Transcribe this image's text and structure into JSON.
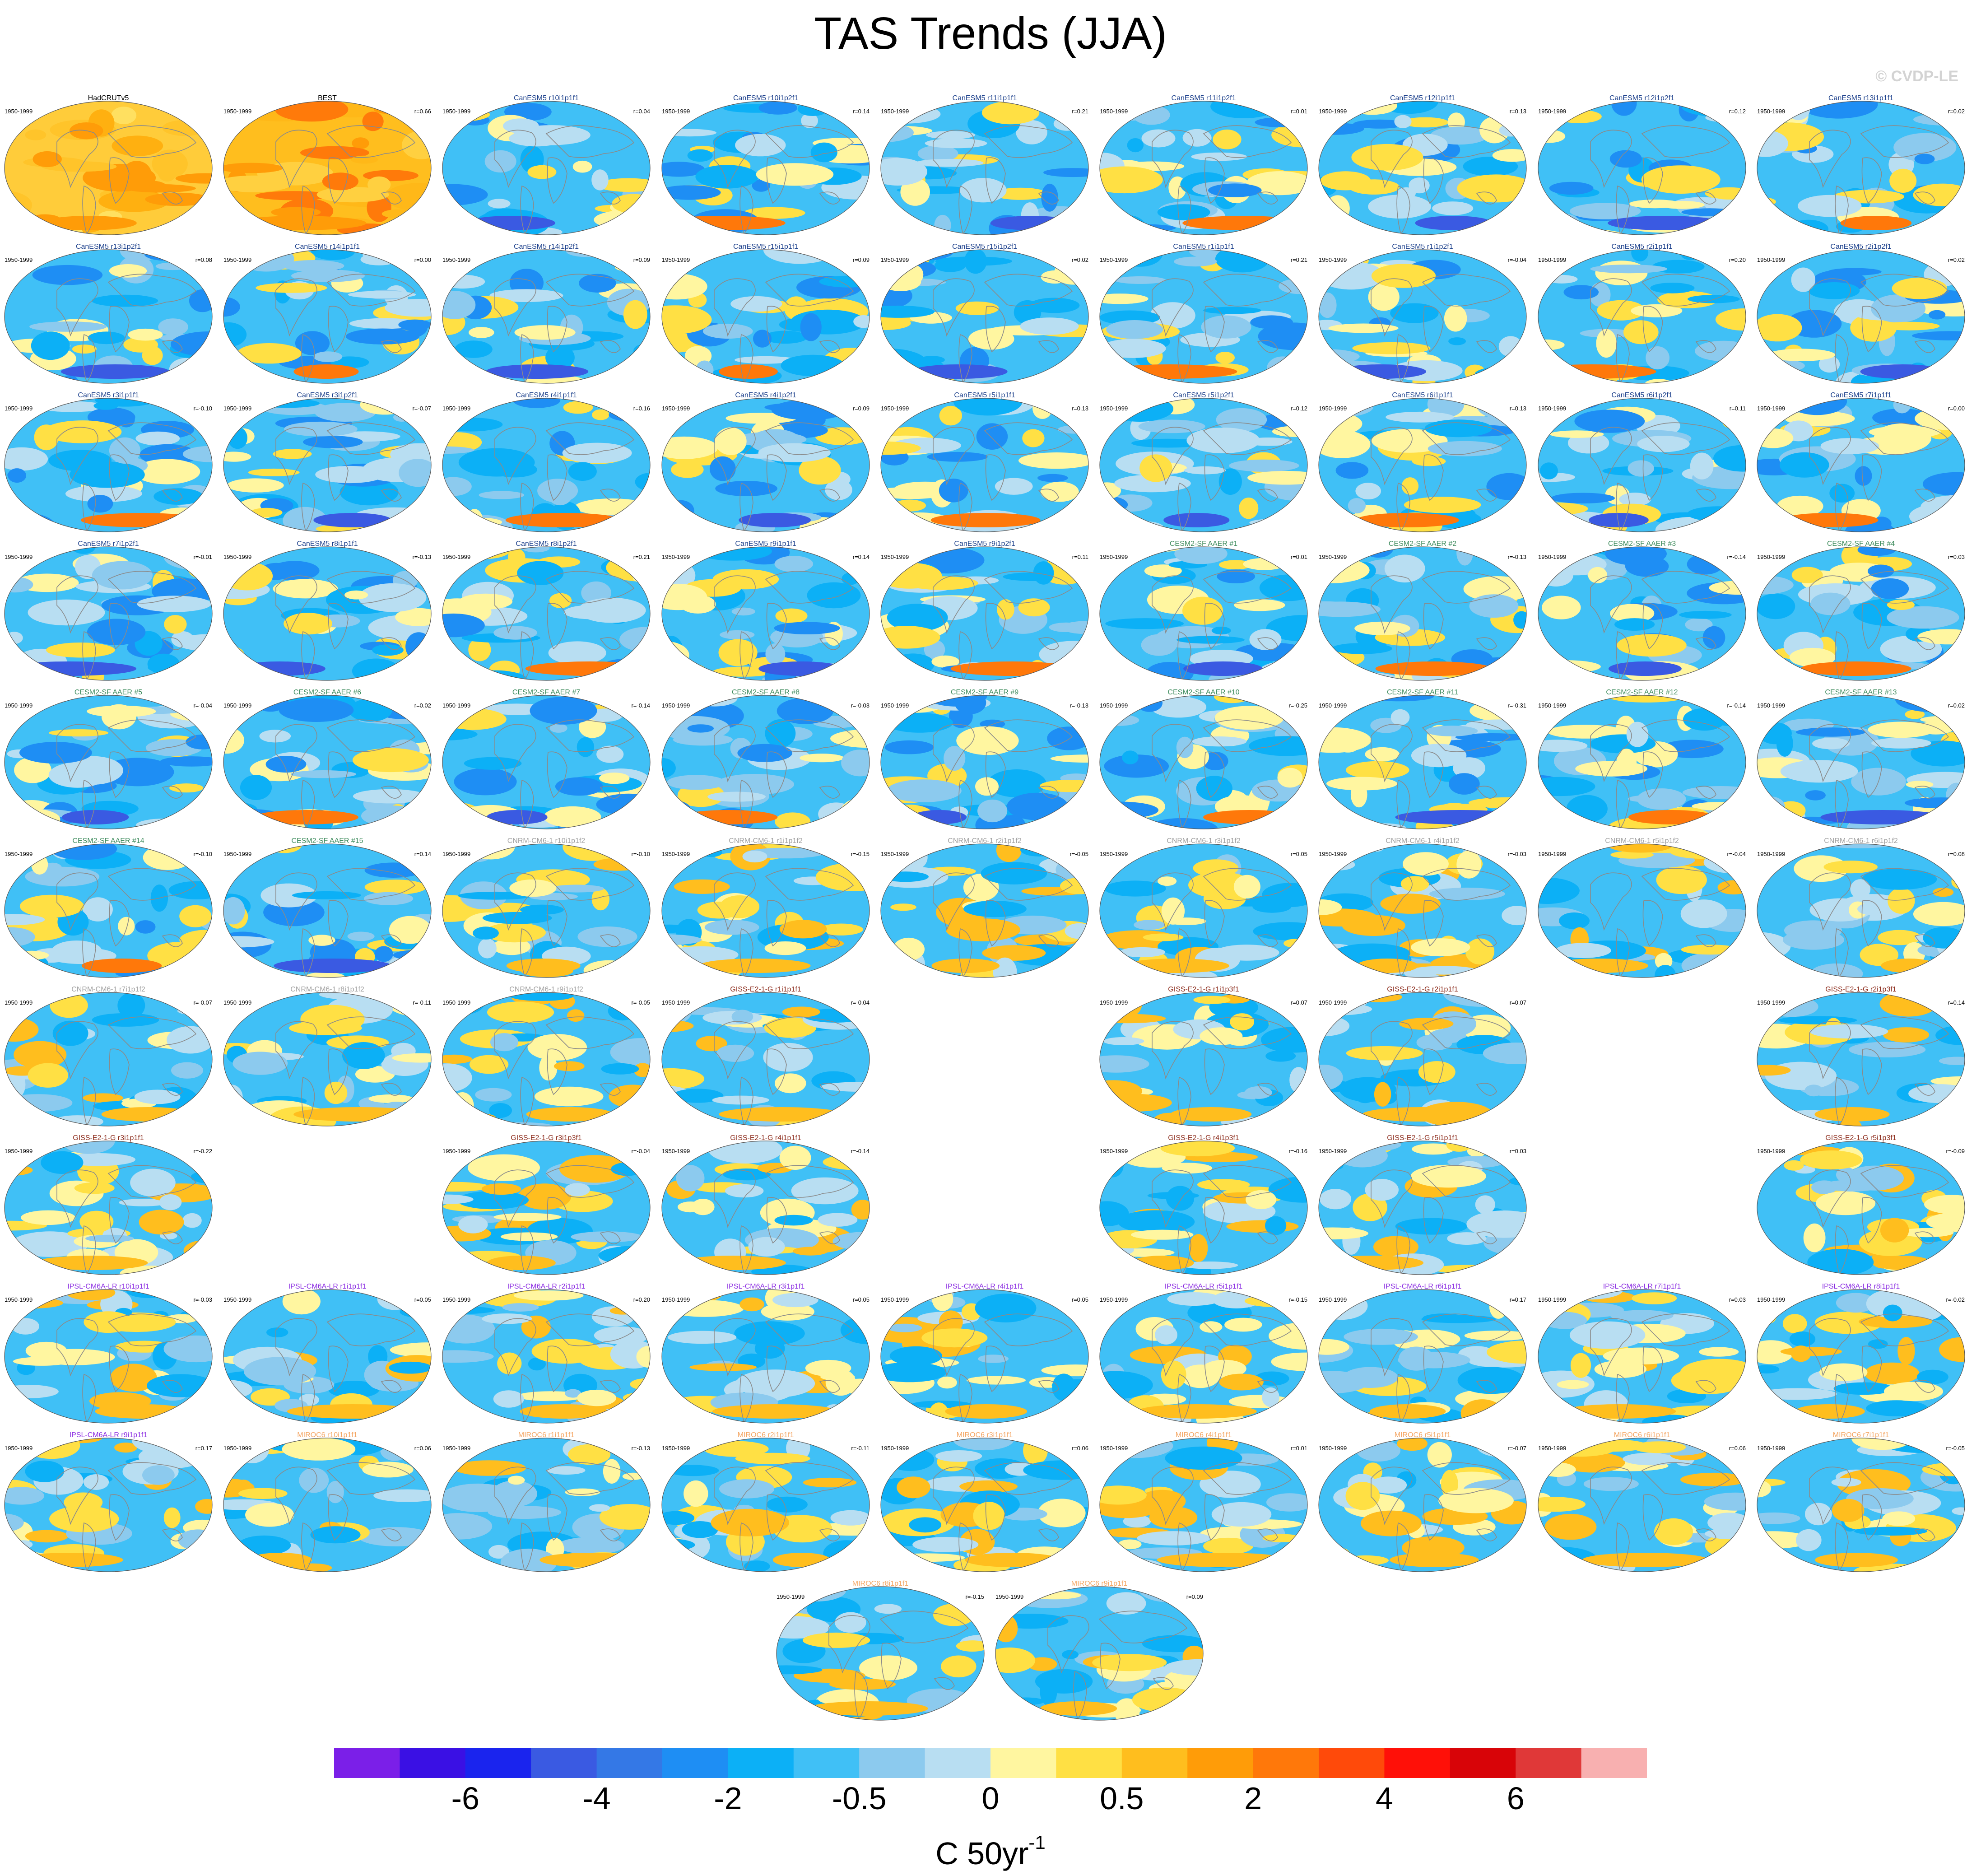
{
  "title": "TAS Trends (JJA)",
  "watermark": "© CVDP-LE",
  "period": "1950-1999",
  "units": {
    "base": "C 50yr",
    "exp": "-1"
  },
  "colorbar": {
    "colors": [
      "#7b1fe8",
      "#3a10e4",
      "#1a24ee",
      "#3a5ae2",
      "#3478e6",
      "#1e8ef4",
      "#0cb0f6",
      "#40c0f6",
      "#8ccaee",
      "#b8def2",
      "#fff6a0",
      "#ffe044",
      "#ffbe1e",
      "#ff9c08",
      "#ff780a",
      "#ff4a0a",
      "#ff1008",
      "#d80408",
      "#e03838",
      "#f8b0b0"
    ],
    "labels": [
      "-6",
      "-4",
      "-2",
      "-0.5",
      "0",
      "0.5",
      "2",
      "4",
      "6"
    ]
  },
  "panels": [
    {
      "name": "HadCRUTv5",
      "r": "",
      "color": "#000000",
      "style": "obs1"
    },
    {
      "name": "BEST",
      "r": "r=0.66",
      "color": "#000000",
      "style": "obs2"
    },
    {
      "name": "CanESM5 r10i1p1f1",
      "r": "r=0.04",
      "color": "#1b3f8b",
      "style": "cool"
    },
    {
      "name": "CanESM5 r10i1p2f1",
      "r": "r=0.14",
      "color": "#1b3f8b",
      "style": "cool"
    },
    {
      "name": "CanESM5 r11i1p1f1",
      "r": "r=0.21",
      "color": "#1b3f8b",
      "style": "cool"
    },
    {
      "name": "CanESM5 r11i1p2f1",
      "r": "r=0.01",
      "color": "#1b3f8b",
      "style": "cool"
    },
    {
      "name": "CanESM5 r12i1p1f1",
      "r": "r=0.13",
      "color": "#1b3f8b",
      "style": "cool"
    },
    {
      "name": "CanESM5 r12i1p2f1",
      "r": "r=0.12",
      "color": "#1b3f8b",
      "style": "cool"
    },
    {
      "name": "CanESM5 r13i1p1f1",
      "r": "r=0.02",
      "color": "#1b3f8b",
      "style": "cool"
    },
    {
      "name": "CanESM5 r13i1p2f1",
      "r": "r=0.08",
      "color": "#1b3f8b",
      "style": "cool"
    },
    {
      "name": "CanESM5 r14i1p1f1",
      "r": "r=0.00",
      "color": "#1b3f8b",
      "style": "cool"
    },
    {
      "name": "CanESM5 r14i1p2f1",
      "r": "r=0.09",
      "color": "#1b3f8b",
      "style": "cool"
    },
    {
      "name": "CanESM5 r15i1p1f1",
      "r": "r=0.09",
      "color": "#1b3f8b",
      "style": "cool"
    },
    {
      "name": "CanESM5 r15i1p2f1",
      "r": "r=0.02",
      "color": "#1b3f8b",
      "style": "cool"
    },
    {
      "name": "CanESM5 r1i1p1f1",
      "r": "r=0.21",
      "color": "#1b3f8b",
      "style": "cool"
    },
    {
      "name": "CanESM5 r1i1p2f1",
      "r": "r=-0.04",
      "color": "#1b3f8b",
      "style": "cool"
    },
    {
      "name": "CanESM5 r2i1p1f1",
      "r": "r=0.20",
      "color": "#1b3f8b",
      "style": "cool"
    },
    {
      "name": "CanESM5 r2i1p2f1",
      "r": "r=0.02",
      "color": "#1b3f8b",
      "style": "cool"
    },
    {
      "name": "CanESM5 r3i1p1f1",
      "r": "r=-0.10",
      "color": "#1b3f8b",
      "style": "cool"
    },
    {
      "name": "CanESM5 r3i1p2f1",
      "r": "r=-0.07",
      "color": "#1b3f8b",
      "style": "cool"
    },
    {
      "name": "CanESM5 r4i1p1f1",
      "r": "r=0.16",
      "color": "#1b3f8b",
      "style": "cool"
    },
    {
      "name": "CanESM5 r4i1p2f1",
      "r": "r=0.09",
      "color": "#1b3f8b",
      "style": "cool"
    },
    {
      "name": "CanESM5 r5i1p1f1",
      "r": "r=0.13",
      "color": "#1b3f8b",
      "style": "cool"
    },
    {
      "name": "CanESM5 r5i1p2f1",
      "r": "r=0.12",
      "color": "#1b3f8b",
      "style": "cool"
    },
    {
      "name": "CanESM5 r6i1p1f1",
      "r": "r=0.13",
      "color": "#1b3f8b",
      "style": "cool"
    },
    {
      "name": "CanESM5 r6i1p2f1",
      "r": "r=0.11",
      "color": "#1b3f8b",
      "style": "cool"
    },
    {
      "name": "CanESM5 r7i1p1f1",
      "r": "r=0.00",
      "color": "#1b3f8b",
      "style": "cool"
    },
    {
      "name": "CanESM5 r7i1p2f1",
      "r": "r=-0.01",
      "color": "#1b3f8b",
      "style": "cool"
    },
    {
      "name": "CanESM5 r8i1p1f1",
      "r": "r=-0.13",
      "color": "#1b3f8b",
      "style": "cool"
    },
    {
      "name": "CanESM5 r8i1p2f1",
      "r": "r=0.21",
      "color": "#1b3f8b",
      "style": "cool"
    },
    {
      "name": "CanESM5 r9i1p1f1",
      "r": "r=0.14",
      "color": "#1b3f8b",
      "style": "cool"
    },
    {
      "name": "CanESM5 r9i1p2f1",
      "r": "r=0.11",
      "color": "#1b3f8b",
      "style": "cool"
    },
    {
      "name": "CESM2-SF AAER #1",
      "r": "r=0.01",
      "color": "#3d8b5c",
      "style": "cool"
    },
    {
      "name": "CESM2-SF AAER #2",
      "r": "r=-0.13",
      "color": "#3d8b5c",
      "style": "cool"
    },
    {
      "name": "CESM2-SF AAER #3",
      "r": "r=-0.14",
      "color": "#3d8b5c",
      "style": "cool"
    },
    {
      "name": "CESM2-SF AAER #4",
      "r": "r=0.03",
      "color": "#3d8b5c",
      "style": "cool"
    },
    {
      "name": "CESM2-SF AAER #5",
      "r": "r=-0.04",
      "color": "#3d8b5c",
      "style": "cool"
    },
    {
      "name": "CESM2-SF AAER #6",
      "r": "r=0.02",
      "color": "#3d8b5c",
      "style": "cool"
    },
    {
      "name": "CESM2-SF AAER #7",
      "r": "r=-0.14",
      "color": "#3d8b5c",
      "style": "cool"
    },
    {
      "name": "CESM2-SF AAER #8",
      "r": "r=-0.03",
      "color": "#3d8b5c",
      "style": "cool"
    },
    {
      "name": "CESM2-SF AAER #9",
      "r": "r=-0.13",
      "color": "#3d8b5c",
      "style": "cool"
    },
    {
      "name": "CESM2-SF AAER #10",
      "r": "r=-0.25",
      "color": "#3d8b5c",
      "style": "cool"
    },
    {
      "name": "CESM2-SF AAER #11",
      "r": "r=-0.31",
      "color": "#3d8b5c",
      "style": "cool"
    },
    {
      "name": "CESM2-SF AAER #12",
      "r": "r=-0.14",
      "color": "#3d8b5c",
      "style": "cool"
    },
    {
      "name": "CESM2-SF AAER #13",
      "r": "r=0.02",
      "color": "#3d8b5c",
      "style": "cool"
    },
    {
      "name": "CESM2-SF AAER #14",
      "r": "r=-0.10",
      "color": "#3d8b5c",
      "style": "cool"
    },
    {
      "name": "CESM2-SF AAER #15",
      "r": "r=0.14",
      "color": "#3d8b5c",
      "style": "cool"
    },
    {
      "name": "CNRM-CM6-1 r10i1p1f2",
      "r": "r=-0.10",
      "color": "#a0a0a0",
      "style": "mixed"
    },
    {
      "name": "CNRM-CM6-1 r1i1p1f2",
      "r": "r=-0.15",
      "color": "#a0a0a0",
      "style": "mixed"
    },
    {
      "name": "CNRM-CM6-1 r2i1p1f2",
      "r": "r=-0.05",
      "color": "#a0a0a0",
      "style": "mixed"
    },
    {
      "name": "CNRM-CM6-1 r3i1p1f2",
      "r": "r=0.05",
      "color": "#a0a0a0",
      "style": "mixed"
    },
    {
      "name": "CNRM-CM6-1 r4i1p1f2",
      "r": "r=-0.03",
      "color": "#a0a0a0",
      "style": "mixed"
    },
    {
      "name": "CNRM-CM6-1 r5i1p1f2",
      "r": "r=-0.04",
      "color": "#a0a0a0",
      "style": "mixed"
    },
    {
      "name": "CNRM-CM6-1 r6i1p1f2",
      "r": "r=0.08",
      "color": "#a0a0a0",
      "style": "mixed"
    },
    {
      "name": "CNRM-CM6-1 r7i1p1f2",
      "r": "r=-0.07",
      "color": "#a0a0a0",
      "style": "mixed"
    },
    {
      "name": "CNRM-CM6-1 r8i1p1f2",
      "r": "r=-0.11",
      "color": "#a0a0a0",
      "style": "mixed"
    },
    {
      "name": "CNRM-CM6-1 r9i1p1f2",
      "r": "r=-0.05",
      "color": "#a0a0a0",
      "style": "mixed"
    },
    {
      "name": "GISS-E2-1-G r1i1p1f1",
      "r": "r=-0.04",
      "color": "#8b2a1a",
      "style": "mixed"
    },
    {
      "name": "GISS-E2-1-G r1i1p3f1",
      "r": "r=0.07",
      "color": "#8b2a1a",
      "style": "mixed"
    },
    {
      "name": "GISS-E2-1-G r2i1p1f1",
      "r": "r=0.07",
      "color": "#8b2a1a",
      "style": "mixed"
    },
    {
      "name": "GISS-E2-1-G r2i1p3f1",
      "r": "r=0.14",
      "color": "#8b2a1a",
      "style": "mixed"
    },
    {
      "name": "GISS-E2-1-G r3i1p1f1",
      "r": "r=-0.22",
      "color": "#8b2a1a",
      "style": "mixed"
    },
    {
      "name": "GISS-E2-1-G r3i1p3f1",
      "r": "r=-0.04",
      "color": "#8b2a1a",
      "style": "mixed"
    },
    {
      "name": "GISS-E2-1-G r4i1p1f1",
      "r": "r=-0.14",
      "color": "#8b2a1a",
      "style": "mixed"
    },
    {
      "name": "GISS-E2-1-G r4i1p3f1",
      "r": "r=-0.16",
      "color": "#8b2a1a",
      "style": "mixed"
    },
    {
      "name": "GISS-E2-1-G r5i1p1f1",
      "r": "r=0.03",
      "color": "#8b2a1a",
      "style": "mixed"
    },
    {
      "name": "GISS-E2-1-G r5i1p3f1",
      "r": "r=-0.09",
      "color": "#8b2a1a",
      "style": "mixed"
    },
    {
      "name": "IPSL-CM6A-LR r10i1p1f1",
      "r": "r=-0.03",
      "color": "#8a2be2",
      "style": "mixed"
    },
    {
      "name": "IPSL-CM6A-LR r1i1p1f1",
      "r": "r=0.05",
      "color": "#8a2be2",
      "style": "mixed"
    },
    {
      "name": "IPSL-CM6A-LR r2i1p1f1",
      "r": "r=0.20",
      "color": "#8a2be2",
      "style": "mixed"
    },
    {
      "name": "IPSL-CM6A-LR r3i1p1f1",
      "r": "r=0.05",
      "color": "#8a2be2",
      "style": "mixed"
    },
    {
      "name": "IPSL-CM6A-LR r4i1p1f1",
      "r": "r=0.05",
      "color": "#8a2be2",
      "style": "mixed"
    },
    {
      "name": "IPSL-CM6A-LR r5i1p1f1",
      "r": "r=-0.15",
      "color": "#8a2be2",
      "style": "mixed"
    },
    {
      "name": "IPSL-CM6A-LR r6i1p1f1",
      "r": "r=0.17",
      "color": "#8a2be2",
      "style": "mixed"
    },
    {
      "name": "IPSL-CM6A-LR r7i1p1f1",
      "r": "r=0.03",
      "color": "#8a2be2",
      "style": "mixed"
    },
    {
      "name": "IPSL-CM6A-LR r8i1p1f1",
      "r": "r=-0.02",
      "color": "#8a2be2",
      "style": "mixed"
    },
    {
      "name": "IPSL-CM6A-LR r9i1p1f1",
      "r": "r=0.17",
      "color": "#8a2be2",
      "style": "mixed"
    },
    {
      "name": "MIROC6 r10i1p1f1",
      "r": "r=0.06",
      "color": "#f4a460",
      "style": "mixed"
    },
    {
      "name": "MIROC6 r1i1p1f1",
      "r": "r=-0.13",
      "color": "#f4a460",
      "style": "mixed"
    },
    {
      "name": "MIROC6 r2i1p1f1",
      "r": "r=-0.11",
      "color": "#f4a460",
      "style": "mixed"
    },
    {
      "name": "MIROC6 r3i1p1f1",
      "r": "r=0.06",
      "color": "#f4a460",
      "style": "mixed"
    },
    {
      "name": "MIROC6 r4i1p1f1",
      "r": "r=0.01",
      "color": "#f4a460",
      "style": "mixed"
    },
    {
      "name": "MIROC6 r5i1p1f1",
      "r": "r=-0.07",
      "color": "#f4a460",
      "style": "mixed"
    },
    {
      "name": "MIROC6 r6i1p1f1",
      "r": "r=0.06",
      "color": "#f4a460",
      "style": "mixed"
    },
    {
      "name": "MIROC6 r7i1p1f1",
      "r": "r=-0.05",
      "color": "#f4a460",
      "style": "mixed"
    },
    {
      "name": "MIROC6 r8i1p1f1",
      "r": "r=-0.15",
      "color": "#f4a460",
      "style": "mixed"
    },
    {
      "name": "MIROC6 r9i1p1f1",
      "r": "r=0.09",
      "color": "#f4a460",
      "style": "mixed"
    }
  ]
}
